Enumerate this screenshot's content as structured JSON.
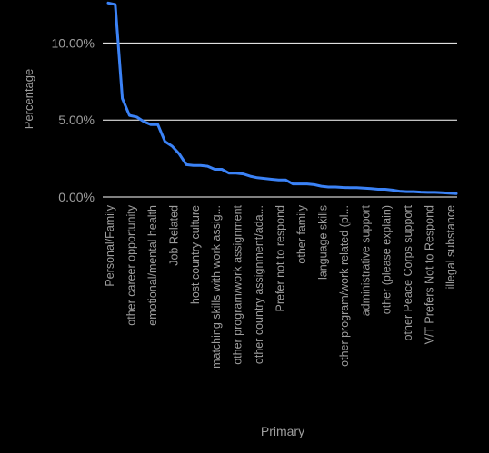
{
  "chart_data": {
    "type": "line",
    "title": "",
    "xlabel": "Primary",
    "ylabel": "Percentage",
    "ylim": [
      0,
      12.5
    ],
    "y_ticks": [
      {
        "value": 0,
        "label": "0.00%"
      },
      {
        "value": 5,
        "label": "5.00%"
      },
      {
        "value": 10,
        "label": "10.00%"
      }
    ],
    "grid": true,
    "categories_shown": [
      "Personal/Family",
      "other career opportunity",
      "emotional/mental health",
      "Job Related",
      "host country culture",
      "matching skills with work assig...",
      "other program/work assignment",
      "other country assignment/ada...",
      "Prefer not to respond",
      "other family",
      "language skills",
      "other program/work related (pl...",
      "administrative support",
      "other (please explain)",
      "other Peace Corps support",
      "V/T Prefers Not to Respond",
      "illegal substance"
    ],
    "series": [
      {
        "name": "Percentage",
        "color": "#3b82f6",
        "values": [
          12.6,
          12.5,
          6.4,
          5.3,
          5.2,
          4.9,
          4.7,
          4.7,
          3.6,
          3.3,
          2.8,
          2.1,
          2.05,
          2.05,
          2.0,
          1.8,
          1.8,
          1.55,
          1.55,
          1.5,
          1.35,
          1.25,
          1.2,
          1.15,
          1.1,
          1.1,
          0.85,
          0.85,
          0.85,
          0.8,
          0.7,
          0.65,
          0.65,
          0.62,
          0.6,
          0.6,
          0.58,
          0.55,
          0.5,
          0.5,
          0.45,
          0.38,
          0.35,
          0.35,
          0.32,
          0.3,
          0.3,
          0.28,
          0.25,
          0.22
        ]
      }
    ]
  },
  "colors": {
    "background": "#000000",
    "grid": "#ffffff",
    "text": "#9e9e9e",
    "line": "#3b82f6"
  }
}
